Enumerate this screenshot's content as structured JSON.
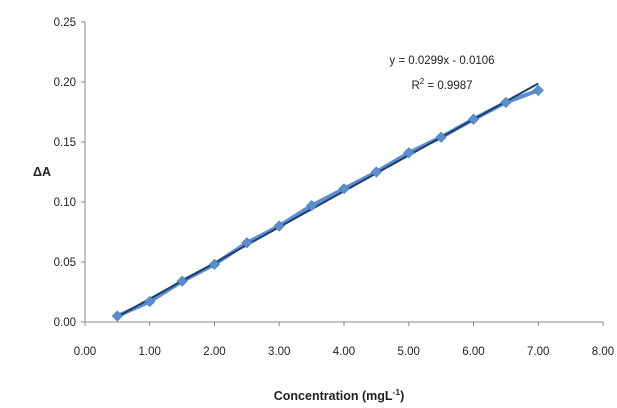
{
  "chart_data": {
    "type": "scatter",
    "title": "",
    "xlabel": "Concentration (mgL",
    "xlabel_superscript": "-1",
    "xlabel_suffix": ")",
    "ylabel": "ΔA",
    "xlim": [
      0,
      8
    ],
    "ylim": [
      0,
      0.25
    ],
    "x_ticks": [
      "0.00",
      "1.00",
      "2.00",
      "3.00",
      "4.00",
      "5.00",
      "6.00",
      "7.00",
      "8.00"
    ],
    "y_ticks": [
      "0.00",
      "0.05",
      "0.10",
      "0.15",
      "0.20",
      "0.25"
    ],
    "grid": false,
    "series": [
      {
        "x": [
          0.5,
          1.0,
          1.5,
          2.0,
          2.5,
          3.0,
          3.5,
          4.0,
          4.5,
          5.0,
          5.5,
          6.0,
          6.5,
          7.0
        ],
        "y": [
          0.005,
          0.017,
          0.034,
          0.048,
          0.066,
          0.08,
          0.097,
          0.111,
          0.125,
          0.141,
          0.154,
          0.169,
          0.183,
          0.193
        ],
        "color": "#5b8fd0"
      }
    ],
    "trendline": {
      "slope": 0.0299,
      "intercept": -0.0106,
      "color": "#1f3e6e",
      "equation_label": "y = 0.0299x - 0.0106",
      "r2_prefix": "R",
      "r2_superscript": "2",
      "r2_suffix": " = 0.9987"
    }
  }
}
